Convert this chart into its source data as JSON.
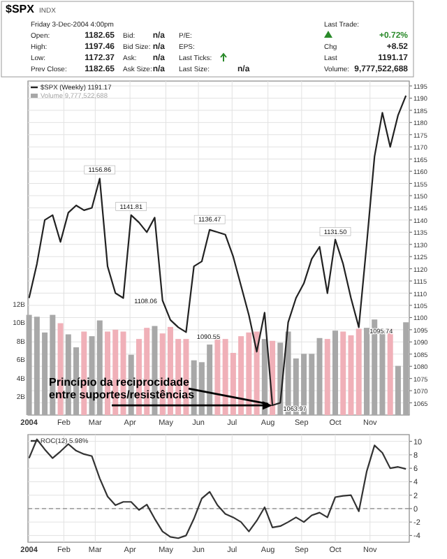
{
  "chart_data": [
    {
      "type": "other",
      "title": "$SPX",
      "annotations": [
        "INDX",
        "Friday 3-Dec-2004 4:00pm",
        "Open:",
        "1182.65",
        "Bid:",
        "n/a",
        "P/E:",
        "High:",
        "1197.46",
        "Bid Size:",
        "n/a",
        "EPS:",
        "Low:",
        "1172.37",
        "Ask:",
        "n/a",
        "Last Ticks:",
        "Prev Close:",
        "1182.65",
        "Ask Size:",
        "n/a",
        "Last Size:",
        "n/a",
        "Last Trade:",
        "+0.72%",
        "Chg",
        "+8.52",
        "Last",
        "1191.17",
        "Volume:",
        "9,777,522,688"
      ]
    },
    {
      "type": "line",
      "x": [
        "2004-01-02",
        "2004-01-09",
        "2004-01-16",
        "2004-01-23",
        "2004-01-30",
        "2004-02-06",
        "2004-02-13",
        "2004-02-20",
        "2004-02-27",
        "2004-03-05",
        "2004-03-12",
        "2004-03-19",
        "2004-03-26",
        "2004-04-02",
        "2004-04-09",
        "2004-04-16",
        "2004-04-23",
        "2004-04-30",
        "2004-05-07",
        "2004-05-14",
        "2004-05-21",
        "2004-05-28",
        "2004-06-04",
        "2004-06-11",
        "2004-06-18",
        "2004-06-25",
        "2004-07-02",
        "2004-07-09",
        "2004-07-16",
        "2004-07-23",
        "2004-07-30",
        "2004-08-06",
        "2004-08-13",
        "2004-08-20",
        "2004-08-27",
        "2004-09-03",
        "2004-09-10",
        "2004-09-17",
        "2004-09-24",
        "2004-10-01",
        "2004-10-08",
        "2004-10-15",
        "2004-10-22",
        "2004-10-29",
        "2004-11-05",
        "2004-11-12",
        "2004-11-19",
        "2004-11-26",
        "2004-12-03"
      ],
      "series": [
        {
          "type": "line",
          "name": "$SPX (Weekly) 1191.17",
          "color": "#222222",
          "values": [
            1108,
            1122,
            1140,
            1142,
            1131,
            1143,
            1146,
            1144,
            1145,
            1157,
            1121,
            1110,
            1108,
            1142,
            1139,
            1135,
            1141,
            1107,
            1099,
            1096,
            1094,
            1121,
            1123,
            1136,
            1135,
            1134,
            1125,
            1113,
            1101,
            1086,
            1102,
            1064,
            1065,
            1098,
            1108,
            1114,
            1124,
            1129,
            1110,
            1132,
            1122,
            1108,
            1096,
            1130,
            1166,
            1184,
            1170,
            1183,
            1191
          ]
        },
        {
          "type": "bar",
          "axis": "y2",
          "name": "Volume 9,777,522,688",
          "color": "#a8a8a8",
          "colors": [
            "#a8a8a8",
            "#a8a8a8",
            "#a8a8a8",
            "#a8a8a8",
            "#f0b0b8",
            "#a8a8a8",
            "#a8a8a8",
            "#f0b0b8",
            "#a8a8a8",
            "#a8a8a8",
            "#f0b0b8",
            "#f0b0b8",
            "#f0b0b8",
            "#a8a8a8",
            "#f0b0b8",
            "#f0b0b8",
            "#a8a8a8",
            "#f0b0b8",
            "#f0b0b8",
            "#f0b0b8",
            "#f0b0b8",
            "#a8a8a8",
            "#a8a8a8",
            "#a8a8a8",
            "#f0b0b8",
            "#f0b0b8",
            "#f0b0b8",
            "#f0b0b8",
            "#f0b0b8",
            "#f0b0b8",
            "#a8a8a8",
            "#f0b0b8",
            "#a8a8a8",
            "#a8a8a8",
            "#a8a8a8",
            "#a8a8a8",
            "#a8a8a8",
            "#a8a8a8",
            "#f0b0b8",
            "#a8a8a8",
            "#f0b0b8",
            "#f0b0b8",
            "#f0b0b8",
            "#a8a8a8",
            "#a8a8a8",
            "#a8a8a8",
            "#f0b0b8",
            "#a8a8a8",
            "#a8a8a8"
          ],
          "values": [
            10.8,
            10.6,
            8.9,
            10.8,
            9.9,
            8.7,
            7.3,
            9.0,
            8.5,
            10.2,
            9.0,
            9.2,
            9.0,
            6.5,
            8.2,
            9.4,
            9.6,
            8.8,
            9.5,
            8.2,
            8.2,
            5.9,
            5.7,
            7.6,
            8.7,
            8.2,
            6.7,
            8.5,
            8.9,
            9.0,
            8.2,
            8.0,
            7.8,
            9.0,
            6.1,
            6.6,
            6.6,
            8.3,
            8.2,
            9.1,
            9.0,
            8.6,
            9.3,
            9.4,
            10.3,
            9.1,
            9.3,
            5.3,
            10.0
          ]
        }
      ],
      "xlim": [
        "2004-01-01",
        "2004-12-06"
      ],
      "xticks": [
        {
          "value": "2004-01-02",
          "label": "2004"
        },
        {
          "value": "2004-02-02",
          "label": "Feb"
        },
        {
          "value": "2004-03-01",
          "label": "Mar"
        },
        {
          "value": "2004-04-01",
          "label": "Apr"
        },
        {
          "value": "2004-05-03",
          "label": "May"
        },
        {
          "value": "2004-06-01",
          "label": "Jun"
        },
        {
          "value": "2004-07-01",
          "label": "Jul"
        },
        {
          "value": "2004-08-02",
          "label": "Aug"
        },
        {
          "value": "2004-09-01",
          "label": "Sep"
        },
        {
          "value": "2004-10-01",
          "label": "Oct"
        },
        {
          "value": "2004-11-01",
          "label": "Nov"
        }
      ],
      "ylim": [
        1060,
        1197
      ],
      "yticks": [
        1065,
        1070,
        1075,
        1080,
        1085,
        1090,
        1095,
        1100,
        1105,
        1110,
        1115,
        1120,
        1125,
        1130,
        1135,
        1140,
        1145,
        1150,
        1155,
        1160,
        1165,
        1170,
        1175,
        1180,
        1185,
        1190,
        1195
      ],
      "y2lim": [
        0,
        36
      ],
      "y2ticks": [
        {
          "value": 2,
          "label": "2B"
        },
        {
          "value": 4,
          "label": "4B"
        },
        {
          "value": 6,
          "label": "6B"
        },
        {
          "value": 8,
          "label": "8B"
        },
        {
          "value": 10,
          "label": "10B"
        },
        {
          "value": 12,
          "label": "12B"
        }
      ],
      "grid": true,
      "legend": "top left",
      "annotations": [
        {
          "text": "1156.86",
          "x": "2004-03-05",
          "y": 1156.86
        },
        {
          "text": "1108.06",
          "x": "2004-03-26",
          "y": 1108.06
        },
        {
          "text": "1141.81",
          "x": "2004-04-02",
          "y": 1141.81
        },
        {
          "text": "1090.55",
          "x": "2004-05-21",
          "y": 1093.56
        },
        {
          "text": "1136.47",
          "x": "2004-06-11",
          "y": 1136.47
        },
        {
          "text": "1063.97",
          "x": "2004-08-06",
          "y": 1063.97
        },
        {
          "text": "1131.50",
          "x": "2004-10-01",
          "y": 1131.5
        },
        {
          "text": "1095.74",
          "x": "2004-10-22",
          "y": 1095.74
        },
        {
          "text": "Princípio da reciprocidade\nentre suportes/resistências",
          "x": "2004-08-06",
          "y": 1063.97
        }
      ]
    },
    {
      "type": "line",
      "x": [
        "2004-01-02",
        "2004-01-09",
        "2004-01-16",
        "2004-01-23",
        "2004-01-30",
        "2004-02-06",
        "2004-02-13",
        "2004-02-20",
        "2004-02-27",
        "2004-03-05",
        "2004-03-12",
        "2004-03-19",
        "2004-03-26",
        "2004-04-02",
        "2004-04-09",
        "2004-04-16",
        "2004-04-23",
        "2004-04-30",
        "2004-05-07",
        "2004-05-14",
        "2004-05-21",
        "2004-05-28",
        "2004-06-04",
        "2004-06-11",
        "2004-06-18",
        "2004-06-25",
        "2004-07-02",
        "2004-07-09",
        "2004-07-16",
        "2004-07-23",
        "2004-07-30",
        "2004-08-06",
        "2004-08-13",
        "2004-08-20",
        "2004-08-27",
        "2004-09-03",
        "2004-09-10",
        "2004-09-17",
        "2004-09-24",
        "2004-10-01",
        "2004-10-08",
        "2004-10-15",
        "2004-10-22",
        "2004-10-29",
        "2004-11-05",
        "2004-11-12",
        "2004-11-19",
        "2004-11-26",
        "2004-12-03"
      ],
      "series": [
        {
          "name": "ROC(12) 5.98%",
          "color": "#333333",
          "values": [
            7.5,
            10.3,
            8.8,
            7.5,
            8.5,
            9.6,
            8.6,
            8.1,
            7.8,
            4.5,
            1.8,
            0.5,
            1.0,
            1.0,
            -0.2,
            0.6,
            -1.5,
            -3.4,
            -4.2,
            -4.4,
            -4.0,
            -1.5,
            1.5,
            2.5,
            0.5,
            -0.8,
            -1.3,
            -2.0,
            -3.4,
            -1.8,
            0.2,
            -2.8,
            -2.6,
            -2.0,
            -1.3,
            -2.0,
            -1.0,
            -0.6,
            -1.3,
            1.7,
            1.9,
            2.0,
            -0.4,
            5.5,
            9.4,
            8.3,
            6.0,
            6.2,
            5.9
          ]
        }
      ],
      "xlim": [
        "2004-01-01",
        "2004-12-06"
      ],
      "xticks": [
        {
          "value": "2004-01-02",
          "label": "2004"
        },
        {
          "value": "2004-02-02",
          "label": "Feb"
        },
        {
          "value": "2004-03-01",
          "label": "Mar"
        },
        {
          "value": "2004-04-01",
          "label": "Apr"
        },
        {
          "value": "2004-05-03",
          "label": "May"
        },
        {
          "value": "2004-06-01",
          "label": "Jun"
        },
        {
          "value": "2004-07-01",
          "label": "Jul"
        },
        {
          "value": "2004-08-02",
          "label": "Aug"
        },
        {
          "value": "2004-09-01",
          "label": "Sep"
        },
        {
          "value": "2004-10-01",
          "label": "Oct"
        },
        {
          "value": "2004-11-01",
          "label": "Nov"
        }
      ],
      "ylim": [
        -5,
        11
      ],
      "yticks": [
        -4,
        -2,
        0,
        2,
        4,
        6,
        8,
        10
      ],
      "grid": true,
      "legend": "top left",
      "ref_lines": [
        {
          "axis": "y",
          "value": 0,
          "color": "#888888",
          "line_style": "dashed"
        }
      ]
    }
  ]
}
